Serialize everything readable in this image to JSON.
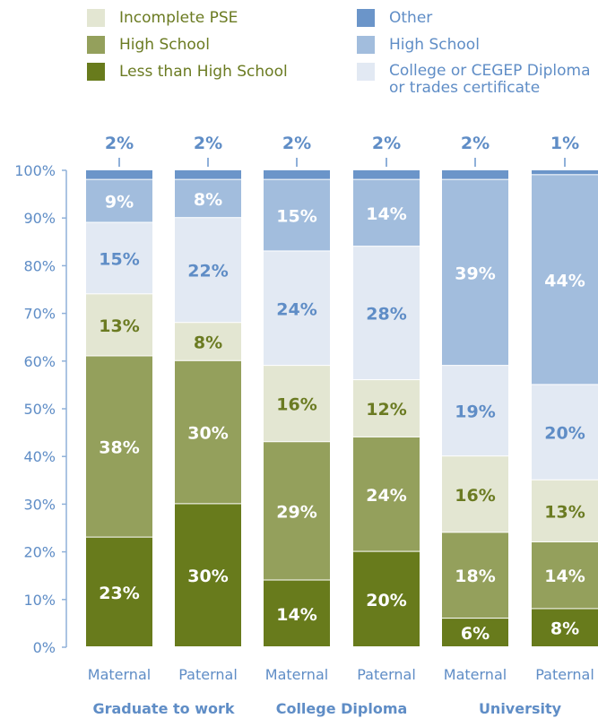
{
  "legend": {
    "left": [
      {
        "label": "Incomplete PSE",
        "color": "#e3e6d2"
      },
      {
        "label": "High School",
        "color": "#94a05c"
      },
      {
        "label": "Less than High School",
        "color": "#687b1c"
      }
    ],
    "right": [
      {
        "label": "Other",
        "color": "#6b95c9"
      },
      {
        "label": "High School",
        "color": "#a2bddd"
      },
      {
        "label": "College or CEGEP Diploma or trades certificate",
        "color": "#e2e9f3"
      }
    ]
  },
  "chart_data": {
    "type": "bar",
    "stacked": true,
    "ylim": [
      0,
      100
    ],
    "yticks": [
      "0%",
      "10%",
      "20%",
      "30%",
      "40%",
      "50%",
      "60%",
      "70%",
      "80%",
      "90%",
      "100%"
    ],
    "categories": [
      "Maternal",
      "Paternal",
      "Maternal",
      "Paternal",
      "Maternal",
      "Paternal"
    ],
    "groups": [
      "Graduate to work",
      "College Diploma",
      "University"
    ],
    "series": [
      {
        "name": "Less than High School",
        "color": "#687b1c",
        "label_color": "#ffffff",
        "values": [
          23,
          30,
          14,
          20,
          6,
          8
        ],
        "labels": [
          "23%",
          "30%",
          "14%",
          "20%",
          "6%",
          "8%"
        ]
      },
      {
        "name": "High School",
        "color": "#94a05c",
        "label_color": "#ffffff",
        "values": [
          38,
          30,
          29,
          24,
          18,
          14
        ],
        "labels": [
          "38%",
          "30%",
          "29%",
          "24%",
          "18%",
          "14%"
        ]
      },
      {
        "name": "Incomplete PSE",
        "color": "#e3e6d2",
        "label_color": "#6b7b22",
        "values": [
          13,
          8,
          16,
          12,
          16,
          13
        ],
        "labels": [
          "13%",
          "8%",
          "16%",
          "12%",
          "16%",
          "13%"
        ]
      },
      {
        "name": "College or CEGEP Diploma or trades certificate",
        "color": "#e2e9f3",
        "label_color": "#5f8dc6",
        "values": [
          15,
          22,
          24,
          28,
          19,
          20
        ],
        "labels": [
          "15%",
          "22%",
          "24%",
          "28%",
          "19%",
          "20%"
        ]
      },
      {
        "name": "High School",
        "color": "#a2bddd",
        "label_color": "#ffffff",
        "values": [
          9,
          8,
          15,
          14,
          39,
          44
        ],
        "labels": [
          "9%",
          "8%",
          "15%",
          "14%",
          "39%",
          "44%"
        ]
      },
      {
        "name": "Other",
        "color": "#6b95c9",
        "label_color": "#5f8dc6",
        "values": [
          2,
          2,
          2,
          2,
          2,
          1
        ],
        "labels": [
          "2%",
          "2%",
          "2%",
          "2%",
          "2%",
          "1%"
        ]
      }
    ],
    "colors": {
      "axis": "#8fb0d9",
      "tick_label": "#5f8dc6",
      "group_label": "#5f8dc6",
      "top_label": "#5f8dc6"
    }
  }
}
